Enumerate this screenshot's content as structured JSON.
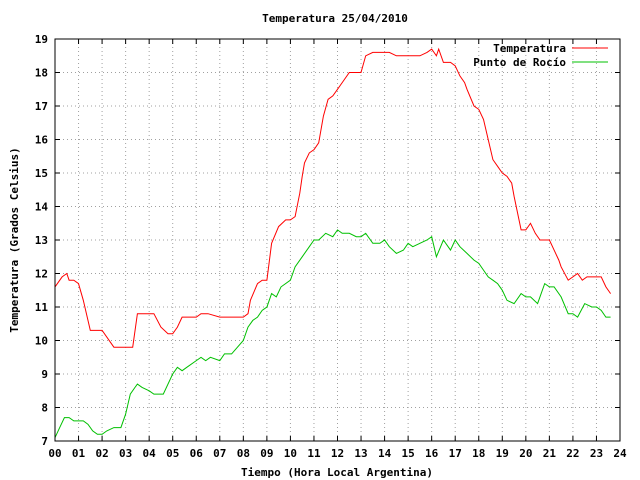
{
  "chart_data": {
    "type": "line",
    "title": "Temperatura 25/04/2010",
    "xlabel": "Tiempo (Hora Local Argentina)",
    "ylabel": "Temperatura (Grados Celsius)",
    "xlim": [
      0,
      24
    ],
    "ylim": [
      7,
      19
    ],
    "x_ticks": [
      "00",
      "01",
      "02",
      "03",
      "04",
      "05",
      "06",
      "07",
      "08",
      "09",
      "10",
      "11",
      "12",
      "13",
      "14",
      "15",
      "16",
      "17",
      "18",
      "19",
      "20",
      "21",
      "22",
      "23",
      "24"
    ],
    "y_ticks": [
      "7",
      "8",
      "9",
      "10",
      "11",
      "12",
      "13",
      "14",
      "15",
      "16",
      "17",
      "18",
      "19"
    ],
    "grid": true,
    "legend_position": "top-right",
    "series": [
      {
        "name": "Temperatura",
        "color": "#ff0000",
        "x": [
          0.0,
          0.3,
          0.5,
          0.6,
          0.8,
          1.0,
          1.2,
          1.5,
          1.6,
          2.0,
          2.5,
          3.0,
          3.1,
          3.3,
          3.5,
          4.0,
          4.2,
          4.5,
          4.8,
          5.0,
          5.2,
          5.4,
          6.0,
          6.2,
          6.5,
          7.0,
          7.2,
          7.5,
          8.0,
          8.2,
          8.3,
          8.6,
          8.8,
          9.0,
          9.2,
          9.5,
          9.8,
          10.0,
          10.2,
          10.4,
          10.5,
          10.6,
          10.8,
          11.0,
          11.2,
          11.4,
          11.6,
          11.8,
          12.0,
          12.2,
          12.5,
          12.8,
          13.0,
          13.2,
          13.5,
          13.8,
          14.0,
          14.2,
          14.5,
          14.8,
          15.0,
          15.2,
          15.5,
          15.8,
          16.0,
          16.1,
          16.2,
          16.3,
          16.5,
          16.8,
          17.0,
          17.2,
          17.4,
          17.5,
          17.8,
          18.0,
          18.2,
          18.4,
          18.6,
          18.8,
          19.0,
          19.2,
          19.4,
          19.5,
          19.8,
          20.0,
          20.2,
          20.4,
          20.6,
          21.0,
          21.2,
          21.4,
          21.5,
          21.8,
          22.0,
          22.2,
          22.4,
          22.6,
          23.0,
          23.2,
          23.4,
          23.6
        ],
        "values": [
          11.6,
          11.9,
          12.0,
          11.8,
          11.8,
          11.7,
          11.2,
          10.3,
          10.3,
          10.3,
          9.8,
          9.8,
          9.8,
          9.8,
          10.8,
          10.8,
          10.8,
          10.4,
          10.2,
          10.2,
          10.4,
          10.7,
          10.7,
          10.8,
          10.8,
          10.7,
          10.7,
          10.7,
          10.7,
          10.8,
          11.2,
          11.7,
          11.8,
          11.8,
          12.9,
          13.4,
          13.6,
          13.6,
          13.7,
          14.4,
          14.9,
          15.3,
          15.6,
          15.7,
          15.9,
          16.7,
          17.2,
          17.3,
          17.5,
          17.7,
          18.0,
          18.0,
          18.0,
          18.5,
          18.6,
          18.6,
          18.6,
          18.6,
          18.5,
          18.5,
          18.5,
          18.5,
          18.5,
          18.6,
          18.7,
          18.6,
          18.5,
          18.7,
          18.3,
          18.3,
          18.2,
          17.9,
          17.7,
          17.5,
          17.0,
          16.9,
          16.6,
          16.0,
          15.4,
          15.2,
          15.0,
          14.9,
          14.7,
          14.3,
          13.3,
          13.3,
          13.5,
          13.2,
          13.0,
          13.0,
          12.7,
          12.4,
          12.2,
          11.8,
          11.9,
          12.0,
          11.8,
          11.9,
          11.9,
          11.9,
          11.6,
          11.4
        ]
      },
      {
        "name": "Punto de Rocío",
        "color": "#00c000",
        "x": [
          0.0,
          0.2,
          0.4,
          0.6,
          0.8,
          1.0,
          1.2,
          1.4,
          1.6,
          1.8,
          2.0,
          2.2,
          2.5,
          2.8,
          3.0,
          3.2,
          3.4,
          3.5,
          3.7,
          4.0,
          4.2,
          4.4,
          4.6,
          5.0,
          5.2,
          5.4,
          5.6,
          6.0,
          6.2,
          6.4,
          6.6,
          7.0,
          7.2,
          7.5,
          8.0,
          8.2,
          8.4,
          8.6,
          8.8,
          9.0,
          9.2,
          9.4,
          9.6,
          10.0,
          10.2,
          10.5,
          10.8,
          11.0,
          11.2,
          11.5,
          11.8,
          12.0,
          12.2,
          12.5,
          12.8,
          13.0,
          13.2,
          13.5,
          13.8,
          14.0,
          14.2,
          14.5,
          14.8,
          15.0,
          15.2,
          15.5,
          15.8,
          16.0,
          16.2,
          16.5,
          16.8,
          17.0,
          17.2,
          17.5,
          17.8,
          18.0,
          18.2,
          18.4,
          18.6,
          18.8,
          19.0,
          19.2,
          19.5,
          19.8,
          20.0,
          20.2,
          20.5,
          20.8,
          21.0,
          21.2,
          21.5,
          21.8,
          22.0,
          22.2,
          22.5,
          22.8,
          23.0,
          23.2,
          23.4,
          23.6
        ],
        "values": [
          7.1,
          7.4,
          7.7,
          7.7,
          7.6,
          7.6,
          7.6,
          7.5,
          7.3,
          7.2,
          7.2,
          7.3,
          7.4,
          7.4,
          7.8,
          8.4,
          8.6,
          8.7,
          8.6,
          8.5,
          8.4,
          8.4,
          8.4,
          9.0,
          9.2,
          9.1,
          9.2,
          9.4,
          9.5,
          9.4,
          9.5,
          9.4,
          9.6,
          9.6,
          10.0,
          10.4,
          10.6,
          10.7,
          10.9,
          11.0,
          11.4,
          11.3,
          11.6,
          11.8,
          12.2,
          12.5,
          12.8,
          13.0,
          13.0,
          13.2,
          13.1,
          13.3,
          13.2,
          13.2,
          13.1,
          13.1,
          13.2,
          12.9,
          12.9,
          13.0,
          12.8,
          12.6,
          12.7,
          12.9,
          12.8,
          12.9,
          13.0,
          13.1,
          12.5,
          13.0,
          12.7,
          13.0,
          12.8,
          12.6,
          12.4,
          12.3,
          12.1,
          11.9,
          11.8,
          11.7,
          11.5,
          11.2,
          11.1,
          11.4,
          11.3,
          11.3,
          11.1,
          11.7,
          11.6,
          11.6,
          11.3,
          10.8,
          10.8,
          10.7,
          11.1,
          11.0,
          11.0,
          10.9,
          10.7,
          10.7
        ]
      }
    ]
  }
}
